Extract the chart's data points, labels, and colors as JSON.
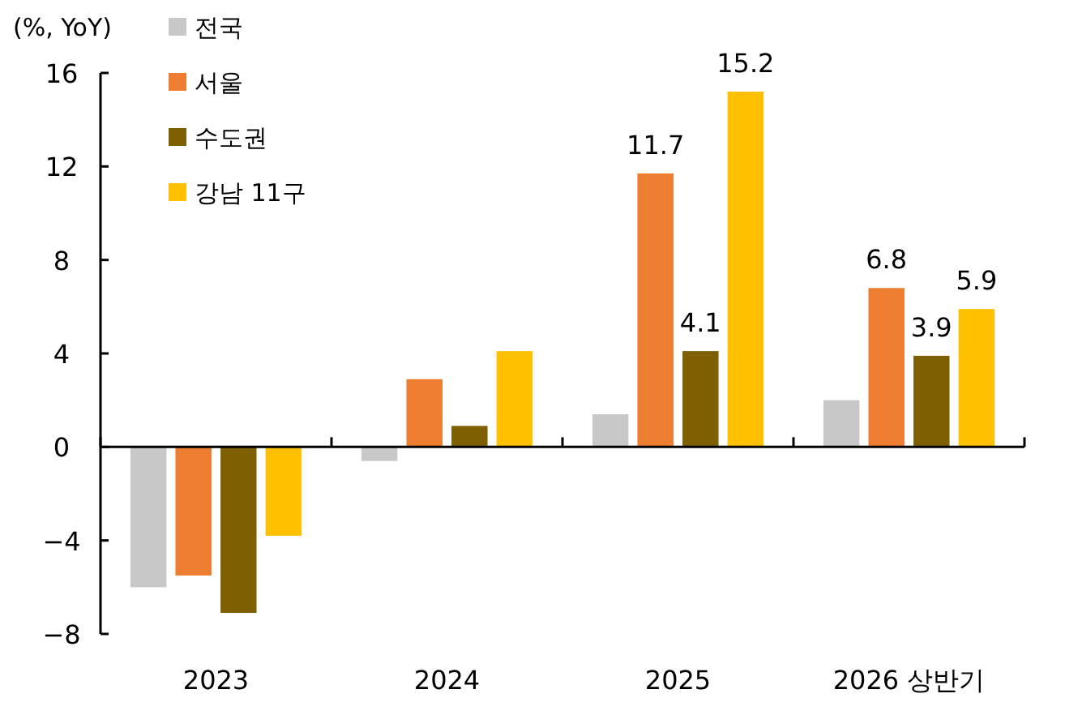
{
  "chart_data": {
    "type": "bar",
    "ylabel": "(%, YoY)",
    "categories": [
      "2023",
      "2024",
      "2025",
      "2026 상반기"
    ],
    "series": [
      {
        "name": "전국",
        "color": "#c8c8c8",
        "values": [
          -6.0,
          -0.6,
          1.4,
          2.0
        ]
      },
      {
        "name": "서울",
        "color": "#ed7d31",
        "values": [
          -5.5,
          2.9,
          11.7,
          6.8
        ],
        "value_labels": [
          null,
          null,
          "11.7",
          "6.8"
        ]
      },
      {
        "name": "수도권",
        "color": "#7f6000",
        "values": [
          -7.1,
          0.9,
          4.1,
          3.9
        ],
        "value_labels": [
          null,
          null,
          "4.1",
          "3.9"
        ]
      },
      {
        "name": "강남 11구",
        "color": "#ffc000",
        "values": [
          -3.8,
          4.1,
          15.2,
          5.9
        ],
        "value_labels": [
          null,
          null,
          "15.2",
          "5.9"
        ]
      }
    ],
    "ylim": [
      -8,
      16
    ],
    "yticks": [
      -8,
      -4,
      0,
      4,
      8,
      12,
      16
    ],
    "legend": "top left"
  }
}
